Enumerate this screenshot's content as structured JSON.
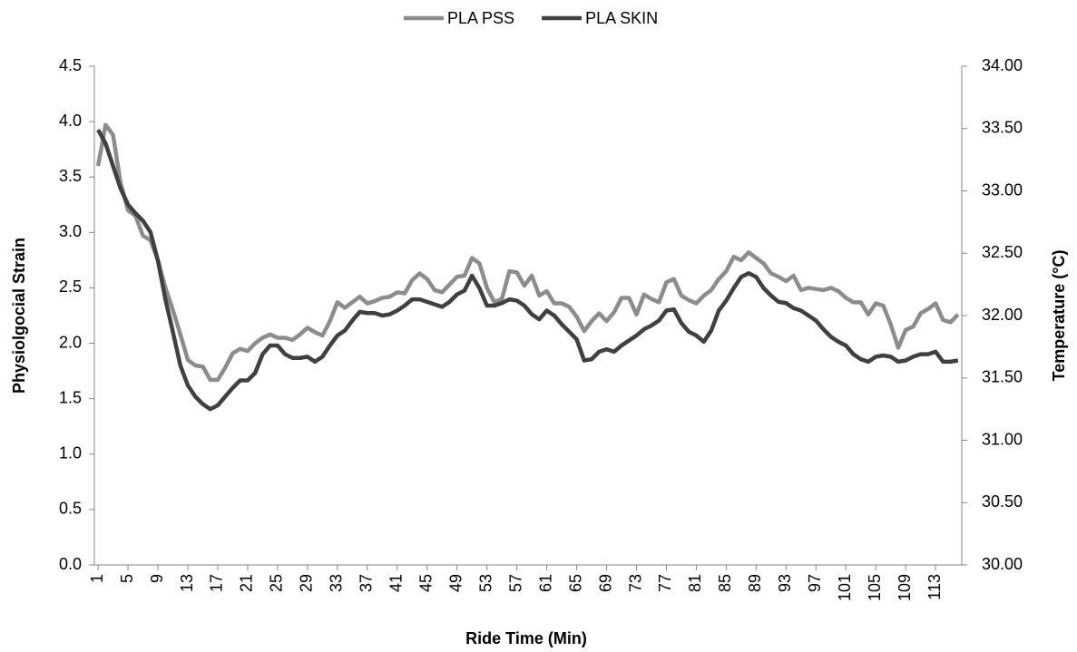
{
  "chart_data": {
    "type": "line",
    "x_label": "Ride Time (Min)",
    "y_label": "Physiolgocial Strain",
    "y2_label": "Temperature (°C)",
    "legend": "top",
    "x": [
      1,
      2,
      3,
      4,
      5,
      6,
      7,
      8,
      9,
      10,
      11,
      12,
      13,
      14,
      15,
      16,
      17,
      18,
      19,
      20,
      21,
      22,
      23,
      24,
      25,
      26,
      27,
      28,
      29,
      30,
      31,
      32,
      33,
      34,
      35,
      36,
      37,
      38,
      39,
      40,
      41,
      42,
      43,
      44,
      45,
      46,
      47,
      48,
      49,
      50,
      51,
      52,
      53,
      54,
      55,
      56,
      57,
      58,
      59,
      60,
      61,
      62,
      63,
      64,
      65,
      66,
      67,
      68,
      69,
      70,
      71,
      72,
      73,
      74,
      75,
      76,
      77,
      78,
      79,
      80,
      81,
      82,
      83,
      84,
      85,
      86,
      87,
      88,
      89,
      90,
      91,
      92,
      93,
      94,
      95,
      96,
      97,
      98,
      99,
      100,
      101,
      102,
      103,
      104,
      105,
      106,
      107,
      108,
      109,
      110,
      111,
      112,
      113,
      114,
      115,
      116
    ],
    "xlim": [
      0.5,
      116.5
    ],
    "xticks": [
      1,
      5,
      9,
      13,
      17,
      21,
      25,
      29,
      33,
      37,
      41,
      45,
      49,
      53,
      57,
      61,
      65,
      69,
      73,
      77,
      81,
      85,
      89,
      93,
      97,
      101,
      105,
      109,
      113
    ],
    "ylim": [
      0,
      4.5
    ],
    "yticks": [
      {
        "value": 0,
        "label": "0.0"
      },
      0.5,
      {
        "value": 1,
        "label": "1.0"
      },
      1.5,
      {
        "value": 2,
        "label": "2.0"
      },
      2.5,
      {
        "value": 3,
        "label": "3.0"
      },
      3.5,
      {
        "value": 4,
        "label": "4.0"
      },
      4.5
    ],
    "y2lim": [
      30,
      34
    ],
    "y2ticks": [
      {
        "value": 30,
        "label": "30.00"
      },
      {
        "value": 30.5,
        "label": "30.50"
      },
      {
        "value": 31,
        "label": "31.00"
      },
      {
        "value": 31.5,
        "label": "31.50"
      },
      {
        "value": 32,
        "label": "32.00"
      },
      {
        "value": 32.5,
        "label": "32.50"
      },
      {
        "value": 33,
        "label": "33.00"
      },
      {
        "value": 33.5,
        "label": "33.50"
      },
      {
        "value": 34,
        "label": "34.00"
      }
    ],
    "series": [
      {
        "name": "PLA PSS",
        "color": "#8c8c8c",
        "values": [
          3.6,
          3.97,
          3.88,
          3.45,
          3.2,
          3.15,
          2.97,
          2.93,
          2.75,
          2.5,
          2.3,
          2.08,
          1.85,
          1.8,
          1.79,
          1.67,
          1.67,
          1.78,
          1.91,
          1.95,
          1.93,
          2.0,
          2.05,
          2.08,
          2.05,
          2.05,
          2.03,
          2.08,
          2.14,
          2.1,
          2.07,
          2.2,
          2.37,
          2.32,
          2.37,
          2.42,
          2.36,
          2.38,
          2.41,
          2.42,
          2.46,
          2.45,
          2.57,
          2.63,
          2.58,
          2.48,
          2.46,
          2.53,
          2.6,
          2.61,
          2.77,
          2.72,
          2.5,
          2.37,
          2.4,
          2.65,
          2.64,
          2.52,
          2.61,
          2.43,
          2.47,
          2.36,
          2.36,
          2.33,
          2.24,
          2.11,
          2.2,
          2.27,
          2.2,
          2.28,
          2.41,
          2.41,
          2.26,
          2.44,
          2.4,
          2.37,
          2.55,
          2.58,
          2.43,
          2.39,
          2.36,
          2.43,
          2.48,
          2.58,
          2.65,
          2.78,
          2.75,
          2.82,
          2.77,
          2.72,
          2.63,
          2.6,
          2.56,
          2.61,
          2.48,
          2.5,
          2.49,
          2.48,
          2.5,
          2.47,
          2.41,
          2.37,
          2.37,
          2.26,
          2.36,
          2.34,
          2.17,
          1.96,
          2.12,
          2.15,
          2.27,
          2.31,
          2.36,
          2.21,
          2.19,
          2.26
        ]
      },
      {
        "name": "PLA SKIN",
        "color": "#404040",
        "axis": "y2",
        "values": [
          33.49,
          33.38,
          33.2,
          33.02,
          32.89,
          32.82,
          32.76,
          32.67,
          32.44,
          32.13,
          31.87,
          31.6,
          31.44,
          31.35,
          31.29,
          31.25,
          31.28,
          31.35,
          31.42,
          31.48,
          31.48,
          31.54,
          31.69,
          31.76,
          31.76,
          31.69,
          31.66,
          31.66,
          31.67,
          31.63,
          31.67,
          31.76,
          31.84,
          31.88,
          31.96,
          32.03,
          32.02,
          32.02,
          32.0,
          32.01,
          32.04,
          32.08,
          32.13,
          32.13,
          32.11,
          32.09,
          32.07,
          32.11,
          32.17,
          32.2,
          32.32,
          32.22,
          32.08,
          32.08,
          32.1,
          32.13,
          32.12,
          32.08,
          32.01,
          31.97,
          32.04,
          32.0,
          31.93,
          31.87,
          31.81,
          31.64,
          31.65,
          31.71,
          31.73,
          31.71,
          31.76,
          31.8,
          31.84,
          31.89,
          31.92,
          31.96,
          32.04,
          32.05,
          31.94,
          31.87,
          31.84,
          31.79,
          31.88,
          32.04,
          32.12,
          32.22,
          32.31,
          32.34,
          32.31,
          32.22,
          32.16,
          32.11,
          32.1,
          32.06,
          32.04,
          32.0,
          31.96,
          31.89,
          31.83,
          31.79,
          31.76,
          31.69,
          31.65,
          31.63,
          31.67,
          31.68,
          31.67,
          31.63,
          31.64,
          31.67,
          31.69,
          31.69,
          31.71,
          31.63,
          31.63,
          31.64
        ]
      }
    ]
  }
}
